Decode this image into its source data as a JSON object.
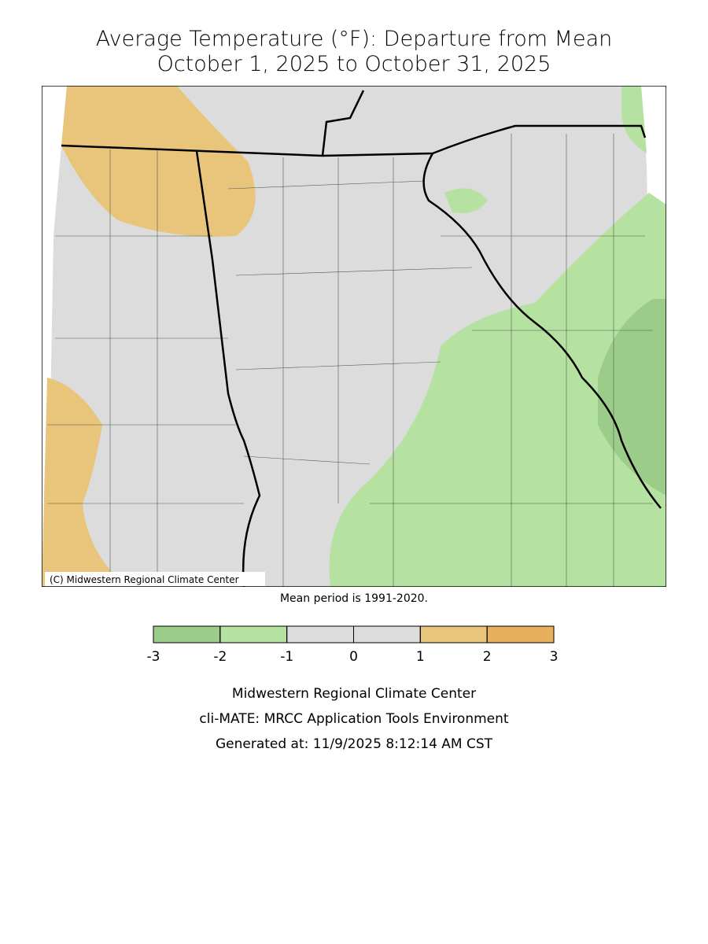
{
  "header": {
    "title": "Average Temperature (°F): Departure from Mean",
    "subtitle": "October 1, 2025 to October 31, 2025"
  },
  "map": {
    "credit": "(C) Midwestern Regional Climate Center",
    "note": "Mean period is 1991-2020."
  },
  "legend": {
    "bins": [
      -3,
      -2,
      -1,
      0,
      1,
      2,
      3
    ],
    "colors": [
      "#9ccc8a",
      "#b5e2a0",
      "#dcdcdc",
      "#dcdcdc",
      "#e8c57a",
      "#e6b05c"
    ]
  },
  "footer": {
    "lines": [
      "Midwestern Regional Climate Center",
      "cli-MATE: MRCC Application Tools Environment",
      "Generated at: 11/9/2025 8:12:14 AM CST"
    ]
  }
}
